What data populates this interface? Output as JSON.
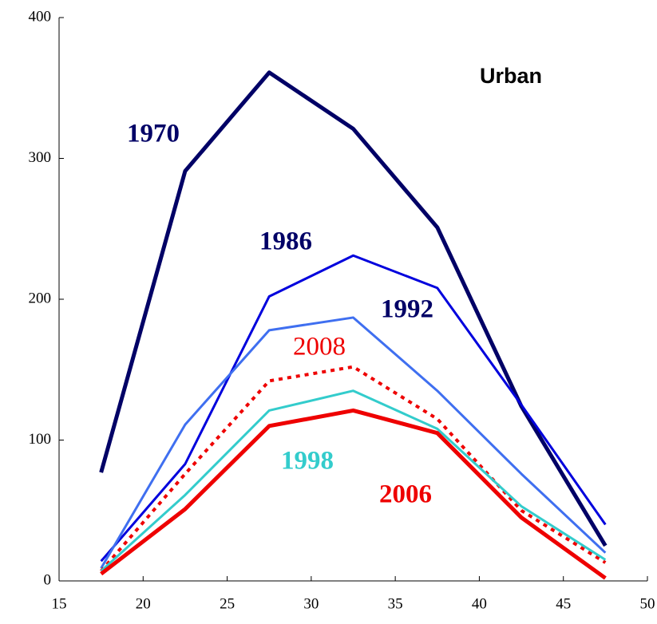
{
  "chart_data": {
    "type": "line",
    "annotation": "Urban",
    "x": [
      17.5,
      22.5,
      27.5,
      32.5,
      37.5,
      42.5,
      47.5
    ],
    "series": [
      {
        "name": "1970",
        "color": "#000066",
        "line_width": 5,
        "dashed": false,
        "values": [
          77,
          291,
          361,
          321,
          251,
          124,
          25
        ]
      },
      {
        "name": "1986",
        "color": "#0000dd",
        "line_width": 3,
        "dashed": false,
        "values": [
          14,
          83,
          202,
          231,
          208,
          125,
          40
        ]
      },
      {
        "name": "1992",
        "color": "#3f6ff0",
        "line_width": 3,
        "dashed": false,
        "values": [
          9,
          111,
          178,
          187,
          135,
          76,
          20
        ]
      },
      {
        "name": "2008",
        "color": "#ee0000",
        "line_width": 4,
        "dashed": true,
        "values": [
          7,
          76,
          142,
          152,
          115,
          50,
          13
        ]
      },
      {
        "name": "1998",
        "color": "#33cccc",
        "line_width": 3,
        "dashed": false,
        "values": [
          7,
          61,
          121,
          135,
          108,
          53,
          15
        ]
      },
      {
        "name": "2006",
        "color": "#ee0000",
        "line_width": 5,
        "dashed": false,
        "values": [
          5,
          51,
          110,
          121,
          105,
          45,
          2
        ]
      }
    ],
    "xlim": [
      15,
      50
    ],
    "xticks": [
      15,
      20,
      25,
      30,
      35,
      40,
      45,
      50
    ],
    "ylim": [
      0,
      400
    ],
    "yticks": [
      0,
      100,
      200,
      300,
      400
    ]
  }
}
